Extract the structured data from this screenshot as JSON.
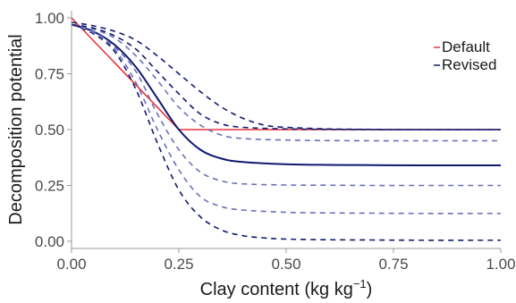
{
  "chart_data": {
    "type": "line",
    "xlabel_main": "Clay content (kg kg",
    "xlabel_sup": "−1",
    "xlabel_close": ")",
    "ylabel": "Decomposition potential",
    "xlim": [
      0,
      1
    ],
    "ylim": [
      0,
      1.04
    ],
    "x_ticks": [
      0,
      0.25,
      0.5,
      0.75,
      1
    ],
    "x_tick_labels": [
      "0.00",
      "0.25",
      "0.50",
      "0.75",
      "1.00"
    ],
    "y_ticks": [
      0,
      0.25,
      0.5,
      0.75,
      1
    ],
    "y_tick_labels": [
      "0.00",
      "0.25",
      "0.50",
      "0.75",
      "1.00"
    ],
    "grid": false,
    "legend_position": "top-right",
    "legend": [
      {
        "label": "Default",
        "color": "#e8343a",
        "dash": "solid"
      },
      {
        "label": "Revised",
        "color": "#101a6e",
        "dash": "dashed"
      }
    ],
    "series": [
      {
        "group": "default",
        "color": "#e8343a",
        "style": "solid",
        "x": [
          0,
          0.25,
          1
        ],
        "y": [
          1.0,
          0.5,
          0.5
        ]
      },
      {
        "group": "revised",
        "color": "#101a6e",
        "style": "solid",
        "curve": true,
        "plateau": 0.34,
        "x": [
          0,
          0.05,
          0.1,
          0.15,
          0.2,
          0.25,
          0.3,
          0.35,
          0.4,
          0.5,
          0.6,
          0.7,
          0.8,
          1.0
        ],
        "y": [
          0.97,
          0.94,
          0.88,
          0.78,
          0.64,
          0.5,
          0.41,
          0.37,
          0.355,
          0.345,
          0.342,
          0.341,
          0.34,
          0.34
        ]
      },
      {
        "group": "revised",
        "color": "#101a6e",
        "style": "dashed",
        "plateau": 0.0,
        "x": [
          0,
          0.05,
          0.1,
          0.15,
          0.2,
          0.25,
          0.3,
          0.35,
          0.4,
          0.45,
          0.5,
          0.6,
          0.7,
          0.8,
          1.0
        ],
        "y": [
          0.97,
          0.93,
          0.85,
          0.68,
          0.44,
          0.23,
          0.11,
          0.05,
          0.025,
          0.015,
          0.01,
          0.007,
          0.006,
          0.005,
          0.005
        ]
      },
      {
        "group": "revised",
        "color": "#6a6fb8",
        "style": "dashed",
        "plateau": 0.125,
        "x": [
          0,
          0.05,
          0.1,
          0.15,
          0.2,
          0.25,
          0.3,
          0.35,
          0.4,
          0.5,
          0.6,
          0.7,
          0.8,
          1.0
        ],
        "y": [
          0.97,
          0.935,
          0.86,
          0.71,
          0.5,
          0.32,
          0.2,
          0.155,
          0.14,
          0.13,
          0.127,
          0.126,
          0.125,
          0.125
        ]
      },
      {
        "group": "revised",
        "color": "#6a6fb8",
        "style": "dashed",
        "plateau": 0.25,
        "x": [
          0,
          0.05,
          0.1,
          0.15,
          0.2,
          0.25,
          0.3,
          0.35,
          0.4,
          0.5,
          0.6,
          0.7,
          0.8,
          1.0
        ],
        "y": [
          0.97,
          0.94,
          0.87,
          0.76,
          0.57,
          0.41,
          0.31,
          0.27,
          0.257,
          0.252,
          0.251,
          0.25,
          0.25,
          0.25
        ]
      },
      {
        "group": "revised",
        "color": "#6a6fb8",
        "style": "dashed",
        "plateau": 0.45,
        "x": [
          0,
          0.05,
          0.1,
          0.15,
          0.2,
          0.25,
          0.3,
          0.35,
          0.4,
          0.5,
          0.6,
          0.7,
          0.8,
          1.0
        ],
        "y": [
          0.97,
          0.95,
          0.91,
          0.83,
          0.72,
          0.6,
          0.52,
          0.475,
          0.46,
          0.453,
          0.451,
          0.45,
          0.45,
          0.45
        ]
      },
      {
        "group": "revised",
        "color": "#101a6e",
        "style": "dashed",
        "plateau": 0.5,
        "x": [
          0,
          0.05,
          0.1,
          0.15,
          0.2,
          0.25,
          0.3,
          0.35,
          0.4,
          0.5,
          0.6,
          0.7,
          0.8,
          1.0
        ],
        "y": [
          0.97,
          0.955,
          0.92,
          0.86,
          0.76,
          0.66,
          0.57,
          0.525,
          0.51,
          0.503,
          0.501,
          0.5,
          0.5,
          0.5
        ]
      },
      {
        "group": "revised",
        "color": "#101a6e",
        "style": "dashed",
        "plateau": 0.5,
        "x": [
          0,
          0.05,
          0.1,
          0.15,
          0.2,
          0.25,
          0.3,
          0.35,
          0.4,
          0.45,
          0.5,
          0.6,
          0.7,
          0.8,
          1.0
        ],
        "y": [
          0.98,
          0.965,
          0.94,
          0.9,
          0.83,
          0.75,
          0.67,
          0.6,
          0.55,
          0.52,
          0.51,
          0.503,
          0.501,
          0.5,
          0.5
        ]
      }
    ]
  }
}
